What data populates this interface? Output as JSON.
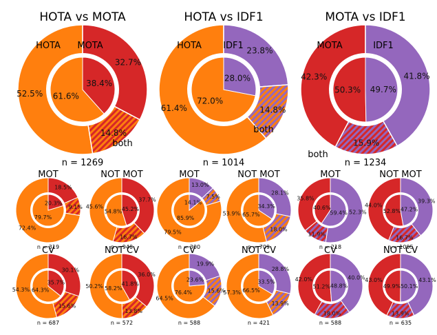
{
  "colors": {
    "HOTA": "#ff7f0e",
    "MOTA": "#d62728",
    "IDF1": "#9467bd"
  },
  "chart_data": [
    {
      "type": "pie",
      "title": "HOTA vs MOTA",
      "pair": [
        "HOTA",
        "MOTA"
      ],
      "outer_values": [
        52.5,
        32.7,
        14.8
      ],
      "inner_values": [
        61.6,
        38.4
      ],
      "outer_labels": [
        "52.5%",
        "32.7%",
        "14.8%"
      ],
      "inner_labels": [
        "61.6%",
        "38.4%"
      ],
      "labels": [
        "HOTA",
        "MOTA",
        "both"
      ],
      "n_label": "n = 1269"
    },
    {
      "type": "pie",
      "title": "HOTA vs IDF1",
      "pair": [
        "HOTA",
        "IDF1"
      ],
      "outer_values": [
        61.4,
        23.8,
        14.8
      ],
      "inner_values": [
        72.0,
        28.0
      ],
      "outer_labels": [
        "61.4%",
        "23.8%",
        "14.8%"
      ],
      "inner_labels": [
        "72.0%",
        "28.0%"
      ],
      "labels": [
        "HOTA",
        "IDF1",
        "both"
      ],
      "n_label": "n = 1014"
    },
    {
      "type": "pie",
      "title": "MOTA vs IDF1",
      "pair": [
        "MOTA",
        "IDF1"
      ],
      "outer_values": [
        42.3,
        41.8,
        15.9
      ],
      "inner_values": [
        50.3,
        49.7
      ],
      "outer_labels": [
        "42.3%",
        "41.8%",
        "15.9%"
      ],
      "inner_labels": [
        "50.3%",
        "49.7%"
      ],
      "labels": [
        "MOTA",
        "IDF1",
        "both"
      ],
      "n_label": "n = 1234"
    },
    {
      "type": "pie",
      "title": "MOT",
      "pair": [
        "HOTA",
        "MOTA"
      ],
      "outer_values": [
        72.4,
        18.5,
        9.1
      ],
      "inner_values": [
        79.7,
        20.3
      ],
      "outer_labels": [
        "72.4%",
        "18.5%",
        "9.1%"
      ],
      "inner_labels": [
        "79.7%",
        "20.3%"
      ],
      "n_label": "n = 319"
    },
    {
      "type": "pie",
      "title": "NOT MOT",
      "pair": [
        "HOTA",
        "MOTA"
      ],
      "outer_values": [
        45.6,
        37.7,
        16.7
      ],
      "inner_values": [
        54.8,
        45.2
      ],
      "outer_labels": [
        "45.6%",
        "37.7%",
        "16.7%"
      ],
      "inner_labels": [
        "54.8%",
        "45.2%"
      ],
      "n_label": "n = 940"
    },
    {
      "type": "pie",
      "title": "MOT",
      "pair": [
        "HOTA",
        "IDF1"
      ],
      "outer_values": [
        79.5,
        13.0,
        7.5
      ],
      "inner_values": [
        85.9,
        14.1
      ],
      "outer_labels": [
        "79.5%",
        "13.0%",
        "7.5%"
      ],
      "inner_labels": [
        "85.9%",
        "14.1%"
      ],
      "n_label": "n = 300"
    },
    {
      "type": "pie",
      "title": "NOT MOT",
      "pair": [
        "HOTA",
        "IDF1"
      ],
      "outer_values": [
        53.9,
        28.1,
        18.0
      ],
      "inner_values": [
        65.7,
        34.3
      ],
      "outer_labels": [
        "53.9%",
        "28.1%",
        "18.0%"
      ],
      "inner_labels": [
        "65.7%",
        "34.3%"
      ],
      "n_label": "n = 709"
    },
    {
      "type": "pie",
      "title": "MOT",
      "pair": [
        "MOTA",
        "IDF1"
      ],
      "outer_values": [
        35.8,
        52.3,
        11.9
      ],
      "inner_values": [
        40.6,
        59.4
      ],
      "outer_labels": [
        "35.8%",
        "52.3%",
        "11.9%"
      ],
      "inner_labels": [
        "40.6%",
        "59.4%"
      ],
      "n_label": "n = 218"
    },
    {
      "type": "pie",
      "title": "NOT MOT",
      "pair": [
        "MOTA",
        "IDF1"
      ],
      "outer_values": [
        44.0,
        39.3,
        16.7
      ],
      "inner_values": [
        52.8,
        47.2
      ],
      "outer_labels": [
        "44.0%",
        "39.3%",
        "16.7%"
      ],
      "inner_labels": [
        "52.8%",
        "47.2%"
      ],
      "n_label": "n = 1005"
    },
    {
      "type": "pie",
      "title": "CV",
      "pair": [
        "HOTA",
        "MOTA"
      ],
      "outer_values": [
        54.3,
        30.1,
        15.6
      ],
      "inner_values": [
        64.3,
        35.7
      ],
      "outer_labels": [
        "54.3%",
        "30.1%",
        "15.6%"
      ],
      "inner_labels": [
        "64.3%",
        "35.7%"
      ],
      "n_label": "n = 687"
    },
    {
      "type": "pie",
      "title": "NOT CV",
      "pair": [
        "HOTA",
        "MOTA"
      ],
      "outer_values": [
        50.2,
        36.0,
        13.8
      ],
      "inner_values": [
        58.2,
        41.8
      ],
      "outer_labels": [
        "50.2%",
        "36.0%",
        "13.8%"
      ],
      "inner_labels": [
        "58.2%",
        "41.8%"
      ],
      "n_label": "n = 572"
    },
    {
      "type": "pie",
      "title": "CV",
      "pair": [
        "HOTA",
        "IDF1"
      ],
      "outer_values": [
        64.5,
        19.9,
        15.6
      ],
      "inner_values": [
        76.4,
        23.6
      ],
      "outer_labels": [
        "64.5%",
        "19.9%",
        "15.6%"
      ],
      "inner_labels": [
        "76.4%",
        "23.6%"
      ],
      "n_label": "n = 588"
    },
    {
      "type": "pie",
      "title": "NOT CV",
      "pair": [
        "HOTA",
        "IDF1"
      ],
      "outer_values": [
        57.3,
        28.8,
        13.9
      ],
      "inner_values": [
        66.5,
        33.5
      ],
      "outer_labels": [
        "57.3%",
        "28.8%",
        "13.9%"
      ],
      "inner_labels": [
        "66.5%",
        "33.5%"
      ],
      "n_label": "n = 421"
    },
    {
      "type": "pie",
      "title": "CV",
      "pair": [
        "MOTA",
        "IDF1"
      ],
      "outer_values": [
        42.0,
        40.0,
        18.0
      ],
      "inner_values": [
        51.2,
        48.8
      ],
      "outer_labels": [
        "42.0%",
        "40.0%",
        "18.0%"
      ],
      "inner_labels": [
        "51.2%",
        "48.8%"
      ],
      "n_label": "n = 588"
    },
    {
      "type": "pie",
      "title": "NOT CV",
      "pair": [
        "MOTA",
        "IDF1"
      ],
      "outer_values": [
        43.0,
        43.1,
        13.9
      ],
      "inner_values": [
        49.9,
        50.1
      ],
      "outer_labels": [
        "43.0%",
        "43.1%",
        "13.9%"
      ],
      "inner_labels": [
        "49.9%",
        "50.1%"
      ],
      "n_label": "n = 635"
    }
  ]
}
